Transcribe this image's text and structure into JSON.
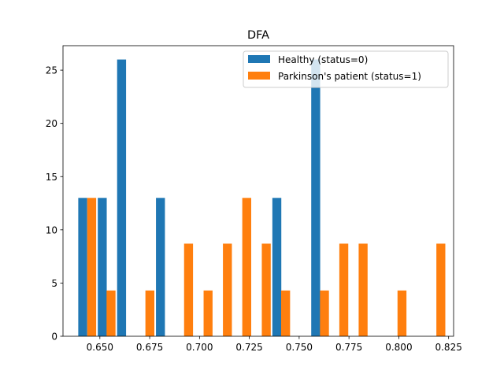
{
  "chart_data": {
    "type": "bar",
    "title": "DFA",
    "xlabel": "",
    "ylabel": "",
    "xlim": [
      0.6315,
      0.8275
    ],
    "ylim": [
      0,
      27.3
    ],
    "x_ticks": [
      0.65,
      0.675,
      0.7,
      0.725,
      0.75,
      0.775,
      0.8,
      0.825
    ],
    "x_tick_labels": [
      "0.650",
      "0.675",
      "0.700",
      "0.725",
      "0.750",
      "0.775",
      "0.800",
      "0.825"
    ],
    "y_ticks": [
      0,
      5,
      10,
      15,
      20,
      25
    ],
    "y_tick_labels": [
      "0",
      "5",
      "10",
      "15",
      "20",
      "25"
    ],
    "grid": false,
    "legend_position": "top-right",
    "bin_width": 0.00449,
    "series": [
      {
        "name": "Healthy (status=0)",
        "color": "#1f77b4",
        "bars": [
          {
            "x": 0.6414,
            "value": 13
          },
          {
            "x": 0.6512,
            "value": 13
          },
          {
            "x": 0.6609,
            "value": 26
          },
          {
            "x": 0.6804,
            "value": 13
          },
          {
            "x": 0.7388,
            "value": 13
          },
          {
            "x": 0.7583,
            "value": 26
          }
        ]
      },
      {
        "name": "Parkinson's patient (status=1)",
        "color": "#ff7f0e",
        "bars": [
          {
            "x": 0.6459,
            "value": 13
          },
          {
            "x": 0.6556,
            "value": 4.3
          },
          {
            "x": 0.6751,
            "value": 4.3
          },
          {
            "x": 0.6945,
            "value": 8.7
          },
          {
            "x": 0.7043,
            "value": 4.3
          },
          {
            "x": 0.714,
            "value": 8.7
          },
          {
            "x": 0.7237,
            "value": 13
          },
          {
            "x": 0.7335,
            "value": 8.7
          },
          {
            "x": 0.7432,
            "value": 4.3
          },
          {
            "x": 0.7627,
            "value": 4.3
          },
          {
            "x": 0.7724,
            "value": 8.7
          },
          {
            "x": 0.7821,
            "value": 8.7
          },
          {
            "x": 0.8016,
            "value": 4.3
          },
          {
            "x": 0.8211,
            "value": 8.7
          }
        ]
      }
    ]
  }
}
